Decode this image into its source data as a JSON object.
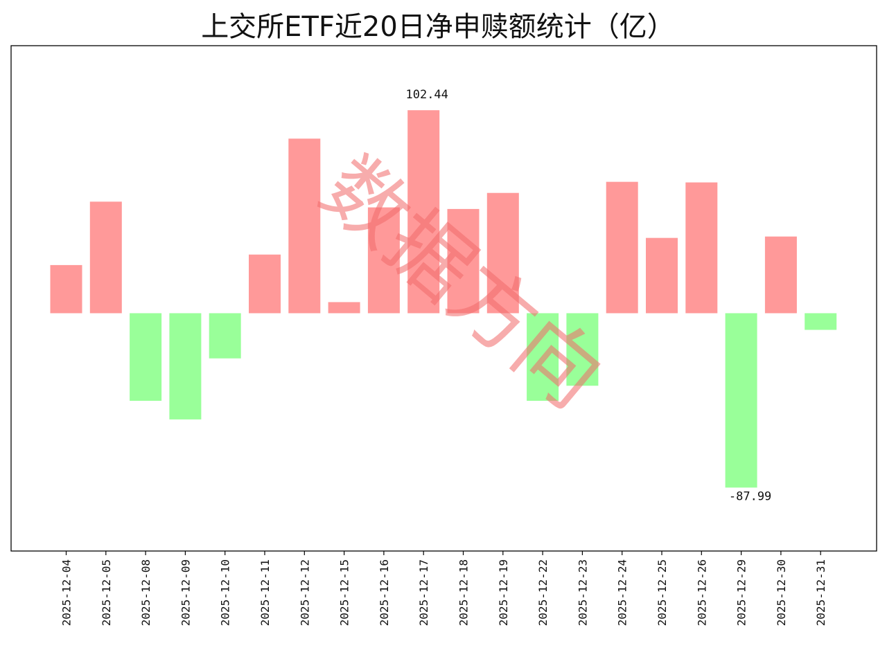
{
  "chart_data": {
    "type": "bar",
    "title": "上交所ETF近20日净申赎额统计（亿）",
    "xlabel": "",
    "ylabel": "",
    "categories": [
      "2025-12-04",
      "2025-12-05",
      "2025-12-08",
      "2025-12-09",
      "2025-12-10",
      "2025-12-11",
      "2025-12-12",
      "2025-12-15",
      "2025-12-16",
      "2025-12-17",
      "2025-12-18",
      "2025-12-19",
      "2025-12-22",
      "2025-12-23",
      "2025-12-24",
      "2025-12-25",
      "2025-12-26",
      "2025-12-29",
      "2025-12-30",
      "2025-12-31"
    ],
    "values": [
      24.3,
      56.3,
      -44.2,
      -53.6,
      -22.8,
      29.6,
      88.1,
      5.6,
      53.4,
      102.44,
      52.6,
      60.7,
      -44.2,
      -36.6,
      66.3,
      38.0,
      66.0,
      -87.99,
      38.7,
      -8.4
    ],
    "data_labels": [
      {
        "category": "2025-12-17",
        "text": "102.44"
      },
      {
        "category": "2025-12-29",
        "text": "-87.99"
      }
    ],
    "ylim": [
      -120,
      135
    ],
    "grid": false,
    "y_ticks_visible": false,
    "colors": {
      "positive": "#ff9999",
      "negative": "#99ff99"
    },
    "watermark": "数据方向"
  }
}
